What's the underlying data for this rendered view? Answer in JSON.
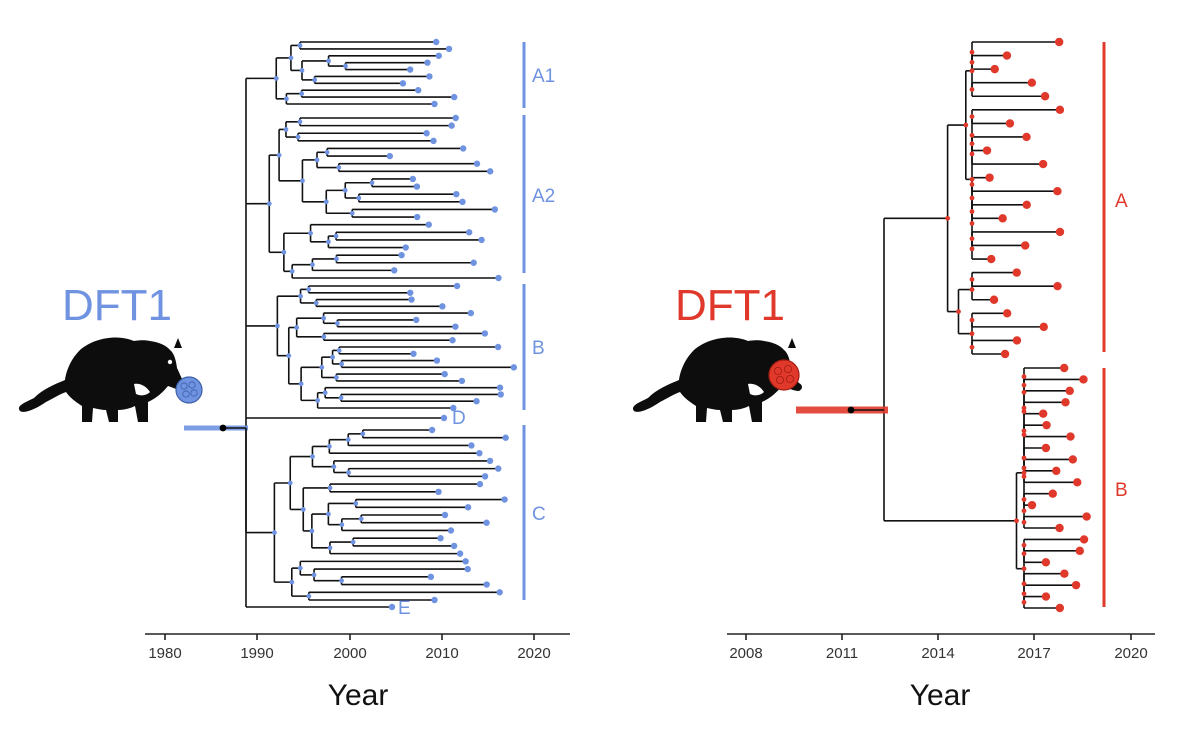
{
  "colors": {
    "left": "#6f93e0",
    "right": "#e0382a",
    "tree": "#111111"
  },
  "left_panel": {
    "title": "DFT1",
    "axis_title": "Year",
    "ticks": [
      "1980",
      "1990",
      "2000",
      "2010",
      "2020"
    ],
    "clades": [
      "A1",
      "A2",
      "B",
      "C"
    ],
    "tip_labels": [
      "D",
      "E"
    ]
  },
  "right_panel": {
    "title": "DFT1",
    "axis_title": "Year",
    "ticks": [
      "2008",
      "2011",
      "2014",
      "2017",
      "2020"
    ],
    "clades": [
      "A",
      "B"
    ]
  },
  "icons": [
    "tasmanian-devil-icon",
    "tumour-cells-icon"
  ]
}
